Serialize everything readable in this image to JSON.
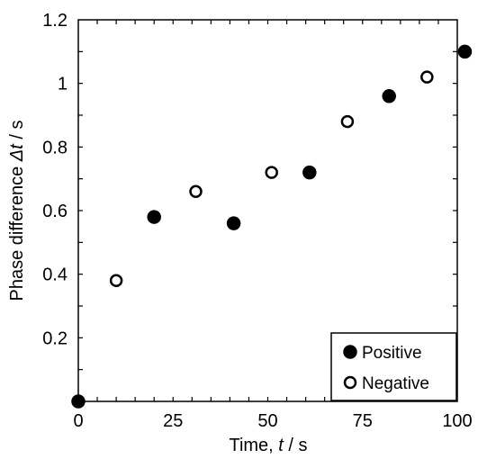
{
  "chart_data": {
    "type": "scatter",
    "xlabel": {
      "prefix": "Time, ",
      "var": "t",
      "suffix": " / s"
    },
    "ylabel": {
      "prefix": "Phase difference ",
      "var": "Δt",
      "suffix": " / s"
    },
    "xlim": [
      0,
      100
    ],
    "ylim": [
      0,
      1.2
    ],
    "x_ticks": [
      0,
      25,
      50,
      75,
      100
    ],
    "x_tick_labels": [
      "0",
      "25",
      "50",
      "75",
      "100"
    ],
    "x_minor_step": 5,
    "y_ticks": [
      0.2,
      0.4,
      0.6,
      0.8,
      1.0,
      1.2
    ],
    "y_tick_labels": [
      "0.2",
      "0.4",
      "0.6",
      "0.8",
      "1",
      "1.2"
    ],
    "y_minor_step": 0.1,
    "grid": false,
    "legend_position": "bottom-right",
    "series": [
      {
        "name": "Positive",
        "marker": "filled-circle",
        "color": "#000000",
        "points": [
          {
            "x": 0,
            "y": 0.0
          },
          {
            "x": 20,
            "y": 0.58
          },
          {
            "x": 41,
            "y": 0.56
          },
          {
            "x": 61,
            "y": 0.72
          },
          {
            "x": 82,
            "y": 0.96
          },
          {
            "x": 102,
            "y": 1.1
          }
        ]
      },
      {
        "name": "Negative",
        "marker": "open-circle",
        "color": "#000000",
        "points": [
          {
            "x": 10,
            "y": 0.38
          },
          {
            "x": 31,
            "y": 0.66
          },
          {
            "x": 51,
            "y": 0.72
          },
          {
            "x": 71,
            "y": 0.88
          },
          {
            "x": 92,
            "y": 1.02
          }
        ]
      }
    ]
  }
}
